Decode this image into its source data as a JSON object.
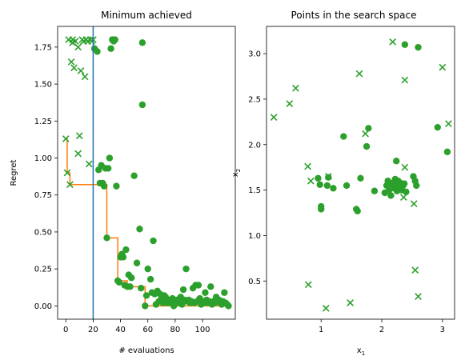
{
  "chart_data": [
    {
      "type": "scatter",
      "title": "Minimum achieved",
      "xlabel": "# evaluations",
      "ylabel": "Regret",
      "xlim": [
        -6,
        124
      ],
      "ylim": [
        -0.09,
        1.89
      ],
      "xticks": [
        0,
        20,
        40,
        60,
        80,
        100
      ],
      "yticks": [
        0.0,
        0.25,
        0.5,
        0.75,
        1.0,
        1.25,
        1.5,
        1.75
      ],
      "ytick_format": "fixed2",
      "grid": false,
      "colors": {
        "points": "#2ca02c",
        "line": "#ff7f0e",
        "vline": "#1f77b4"
      },
      "vertical_line_x": 20,
      "series": [
        {
          "kind": "x-markers",
          "points": [
            [
              0,
              1.13
            ],
            [
              1,
              0.9
            ],
            [
              2,
              1.8
            ],
            [
              3,
              0.82
            ],
            [
              4,
              1.65
            ],
            [
              5,
              1.78
            ],
            [
              6,
              1.61
            ],
            [
              7,
              1.79
            ],
            [
              9,
              1.03
            ],
            [
              10,
              1.15
            ],
            [
              11,
              1.59
            ],
            [
              12,
              1.8
            ],
            [
              14,
              1.55
            ],
            [
              15,
              1.8
            ],
            [
              17,
              0.96
            ],
            [
              18,
              1.8
            ],
            [
              20,
              1.8
            ],
            [
              9,
              1.75
            ],
            [
              5,
              1.8
            ],
            [
              13,
              1.79
            ],
            [
              16,
              1.79
            ],
            [
              19,
              1.79
            ]
          ]
        },
        {
          "kind": "dots",
          "points": [
            [
              21,
              1.74
            ],
            [
              23,
              1.72
            ],
            [
              24,
              0.92
            ],
            [
              25,
              0.83
            ],
            [
              26,
              0.95
            ],
            [
              27,
              0.83
            ],
            [
              28,
              0.81
            ],
            [
              29,
              0.93
            ],
            [
              30,
              0.46
            ],
            [
              31,
              0.93
            ],
            [
              32,
              1.0
            ],
            [
              33,
              1.74
            ],
            [
              34,
              1.8
            ],
            [
              35,
              1.79
            ],
            [
              36,
              1.8
            ],
            [
              37,
              0.81
            ],
            [
              38,
              0.17
            ],
            [
              39,
              0.16
            ],
            [
              40,
              0.33
            ],
            [
              41,
              0.35
            ],
            [
              42,
              0.33
            ],
            [
              43,
              0.14
            ],
            [
              44,
              0.38
            ],
            [
              45,
              0.13
            ],
            [
              46,
              0.21
            ],
            [
              47,
              0.13
            ],
            [
              48,
              0.19
            ],
            [
              50,
              0.88
            ],
            [
              52,
              0.29
            ],
            [
              54,
              0.52
            ],
            [
              55,
              0.12
            ],
            [
              56,
              1.36
            ],
            [
              56,
              1.78
            ],
            [
              58,
              0.0
            ],
            [
              59,
              0.07
            ],
            [
              60,
              0.25
            ],
            [
              62,
              0.18
            ],
            [
              63,
              0.09
            ],
            [
              64,
              0.44
            ],
            [
              65,
              0.08
            ],
            [
              66,
              0.01
            ],
            [
              67,
              0.1
            ],
            [
              68,
              0.03
            ],
            [
              69,
              0.08
            ],
            [
              70,
              0.05
            ],
            [
              71,
              0.02
            ],
            [
              72,
              0.07
            ],
            [
              73,
              0.06
            ],
            [
              74,
              0.02
            ],
            [
              75,
              0.04
            ],
            [
              76,
              0.03
            ],
            [
              77,
              0.02
            ],
            [
              78,
              0.05
            ],
            [
              79,
              0.0
            ],
            [
              80,
              0.03
            ],
            [
              81,
              0.04
            ],
            [
              82,
              0.03
            ],
            [
              83,
              0.02
            ],
            [
              84,
              0.06
            ],
            [
              85,
              0.01
            ],
            [
              86,
              0.11
            ],
            [
              87,
              0.04
            ],
            [
              88,
              0.25
            ],
            [
              89,
              0.03
            ],
            [
              90,
              0.04
            ],
            [
              91,
              0.02
            ],
            [
              92,
              0.03
            ],
            [
              93,
              0.12
            ],
            [
              94,
              0.02
            ],
            [
              95,
              0.14
            ],
            [
              96,
              0.03
            ],
            [
              97,
              0.14
            ],
            [
              98,
              0.05
            ],
            [
              99,
              0.01
            ],
            [
              100,
              0.03
            ],
            [
              101,
              0.02
            ],
            [
              102,
              0.09
            ],
            [
              103,
              0.04
            ],
            [
              104,
              0.02
            ],
            [
              105,
              0.03
            ],
            [
              106,
              0.13
            ],
            [
              107,
              0.01
            ],
            [
              108,
              0.03
            ],
            [
              109,
              0.02
            ],
            [
              110,
              0.06
            ],
            [
              111,
              0.03
            ],
            [
              112,
              0.04
            ],
            [
              113,
              0.02
            ],
            [
              114,
              0.01
            ],
            [
              115,
              0.03
            ],
            [
              116,
              0.09
            ],
            [
              117,
              0.02
            ],
            [
              118,
              0.01
            ],
            [
              119,
              0.0
            ]
          ]
        },
        {
          "kind": "step-line",
          "points": [
            [
              0,
              1.13
            ],
            [
              1,
              0.9
            ],
            [
              3,
              0.82
            ],
            [
              30,
              0.46
            ],
            [
              38,
              0.17
            ],
            [
              45,
              0.13
            ],
            [
              58,
              0.0
            ],
            [
              119,
              0.0
            ]
          ]
        }
      ]
    },
    {
      "type": "scatter",
      "title": "Points in the search space",
      "xlabel_main": "x",
      "xlabel_sub": "1",
      "ylabel_main": "x",
      "ylabel_sub": "2",
      "xlim": [
        0.1,
        3.2
      ],
      "ylim": [
        0.08,
        3.3
      ],
      "xticks": [
        1,
        2,
        3
      ],
      "yticks": [
        0.5,
        1.0,
        1.5,
        2.0,
        2.5,
        3.0
      ],
      "ytick_format": "fixed1",
      "grid": false,
      "colors": {
        "points": "#2ca02c"
      },
      "series": [
        {
          "kind": "x-markers",
          "points": [
            [
              0.22,
              2.3
            ],
            [
              0.48,
              2.45
            ],
            [
              0.58,
              2.62
            ],
            [
              0.78,
              1.76
            ],
            [
              0.83,
              1.6
            ],
            [
              0.79,
              0.46
            ],
            [
              1.08,
              0.2
            ],
            [
              1.12,
              1.65
            ],
            [
              1.48,
              0.26
            ],
            [
              1.63,
              2.78
            ],
            [
              1.73,
              2.12
            ],
            [
              2.18,
              3.13
            ],
            [
              2.38,
              2.71
            ],
            [
              2.38,
              1.75
            ],
            [
              2.36,
              1.42
            ],
            [
              2.53,
              1.35
            ],
            [
              2.55,
              0.62
            ],
            [
              2.6,
              0.33
            ],
            [
              3.0,
              2.85
            ],
            [
              3.1,
              2.23
            ]
          ]
        },
        {
          "kind": "dots",
          "points": [
            [
              0.95,
              1.63
            ],
            [
              0.98,
              1.56
            ],
            [
              1.0,
              1.32
            ],
            [
              1.0,
              1.29
            ],
            [
              1.1,
              1.55
            ],
            [
              1.12,
              1.64
            ],
            [
              1.2,
              1.52
            ],
            [
              1.37,
              2.09
            ],
            [
              1.42,
              1.55
            ],
            [
              1.58,
              1.29
            ],
            [
              1.6,
              1.27
            ],
            [
              1.65,
              1.63
            ],
            [
              1.75,
              1.98
            ],
            [
              1.78,
              2.18
            ],
            [
              1.88,
              1.49
            ],
            [
              2.05,
              1.47
            ],
            [
              2.08,
              1.55
            ],
            [
              2.1,
              1.6
            ],
            [
              2.12,
              1.5
            ],
            [
              2.15,
              1.44
            ],
            [
              2.17,
              1.56
            ],
            [
              2.19,
              1.58
            ],
            [
              2.2,
              1.52
            ],
            [
              2.22,
              1.62
            ],
            [
              2.24,
              1.82
            ],
            [
              2.25,
              1.49
            ],
            [
              2.27,
              1.6
            ],
            [
              2.28,
              1.55
            ],
            [
              2.3,
              1.58
            ],
            [
              2.31,
              1.52
            ],
            [
              2.33,
              1.5
            ],
            [
              2.35,
              1.55
            ],
            [
              2.37,
              1.57
            ],
            [
              2.38,
              3.1
            ],
            [
              2.4,
              1.48
            ],
            [
              2.52,
              1.65
            ],
            [
              2.55,
              1.6
            ],
            [
              2.57,
              1.55
            ],
            [
              2.6,
              3.07
            ],
            [
              2.92,
              2.19
            ],
            [
              3.08,
              1.92
            ]
          ]
        }
      ]
    }
  ]
}
